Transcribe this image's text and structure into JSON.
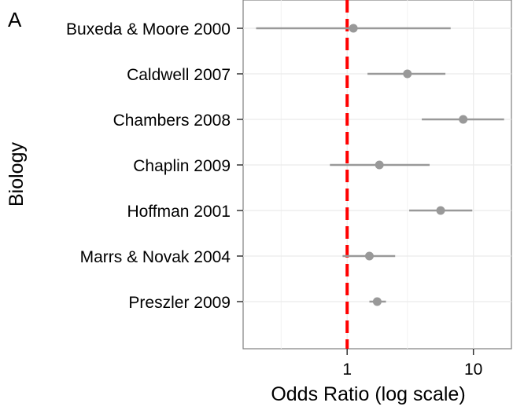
{
  "panel_label": "A",
  "chart_data": {
    "type": "scatter",
    "xlabel": "Odds Ratio (log scale)",
    "ylabel": "Biology",
    "x_scale": "log10",
    "xlim": [
      0.15,
      20
    ],
    "x_ticks": [
      1,
      10
    ],
    "x_tick_labels": [
      "1",
      "10"
    ],
    "reference_line": {
      "x": 1,
      "color": "#ff0000",
      "style": "dashed"
    },
    "grid": true,
    "point_color": "#999999",
    "studies": [
      {
        "label": "Buxeda & Moore 2000",
        "estimate": 1.12,
        "lower": 0.19,
        "upper": 6.6
      },
      {
        "label": "Caldwell 2007",
        "estimate": 3.0,
        "lower": 1.45,
        "upper": 6.0
      },
      {
        "label": "Chambers 2008",
        "estimate": 8.3,
        "lower": 3.9,
        "upper": 17.5
      },
      {
        "label": "Chaplin 2009",
        "estimate": 1.8,
        "lower": 0.73,
        "upper": 4.5
      },
      {
        "label": "Hoffman 2001",
        "estimate": 5.5,
        "lower": 3.1,
        "upper": 9.8
      },
      {
        "label": "Marrs & Novak 2004",
        "estimate": 1.5,
        "lower": 0.92,
        "upper": 2.4
      },
      {
        "label": "Preszler 2009",
        "estimate": 1.73,
        "lower": 1.5,
        "upper": 2.03
      }
    ]
  }
}
